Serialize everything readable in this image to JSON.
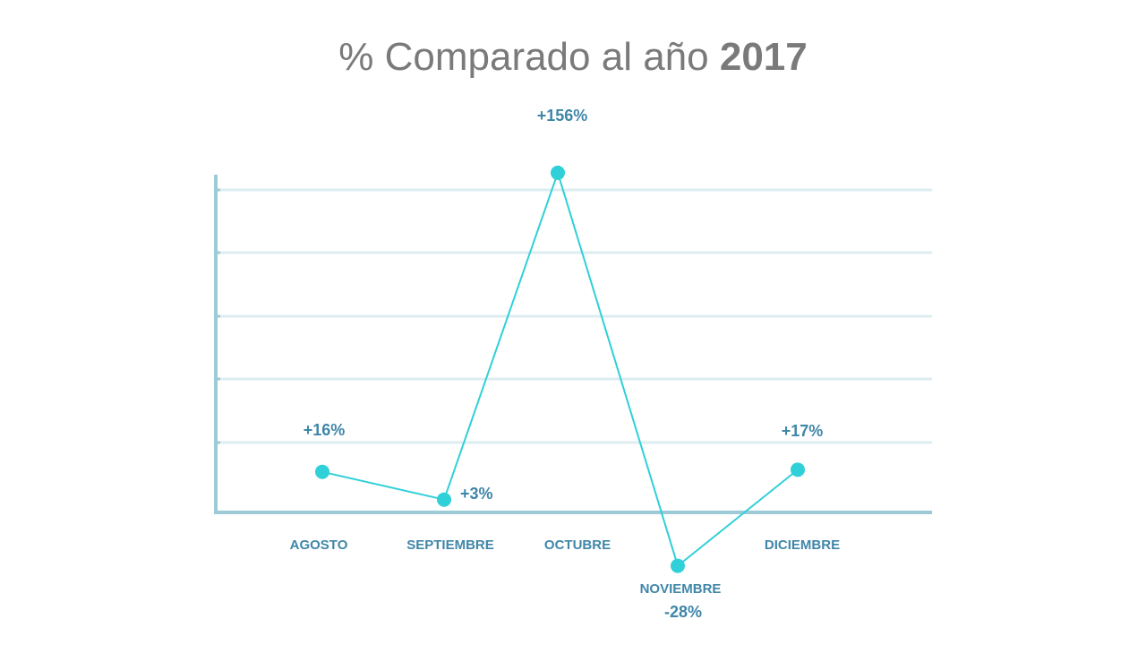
{
  "title": {
    "prefix": "% Comparado al año",
    "year": "2017"
  },
  "colors": {
    "line": "#2fd0d8",
    "axis": "#9ccad6",
    "grid": "#dcecf1",
    "label": "#3f86a8",
    "title": "#7a7a7a"
  },
  "chart_data": {
    "type": "line",
    "title": "% Comparado al año 2017",
    "categories": [
      "AGOSTO",
      "SEPTIEMBRE",
      "OCTUBRE",
      "NOVIEMBRE",
      "DICIEMBRE"
    ],
    "values": [
      16,
      3,
      156,
      -28,
      17
    ],
    "data_labels": [
      "+16%",
      "+3%",
      "+156%",
      "-28%",
      "+17%"
    ],
    "xlabel": "",
    "ylabel": "",
    "ylim": [
      -3,
      148
    ],
    "grid": true,
    "legend": "none"
  }
}
